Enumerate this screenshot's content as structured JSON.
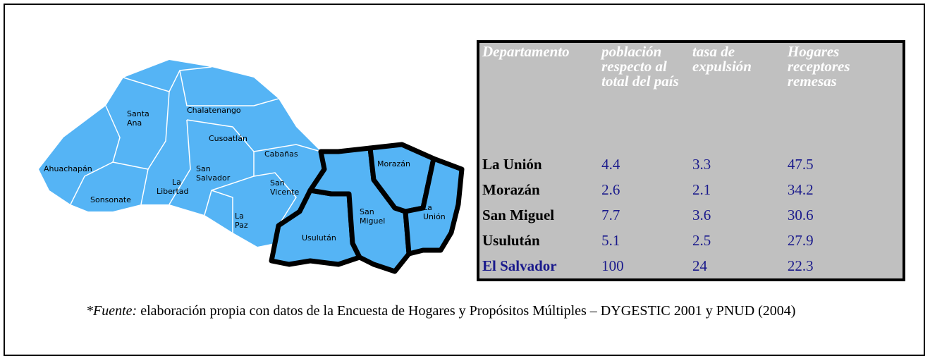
{
  "map": {
    "labels": [
      {
        "lines": [
          "Santa",
          "Ana"
        ]
      },
      {
        "lines": [
          "Chalatenango"
        ]
      },
      {
        "lines": [
          "Cusoatlán"
        ]
      },
      {
        "lines": [
          "Cabañas"
        ]
      },
      {
        "lines": [
          "Ahuachapán"
        ]
      },
      {
        "lines": [
          "San",
          "Salvador"
        ]
      },
      {
        "lines": [
          "La",
          "Libertad"
        ]
      },
      {
        "lines": [
          "Sonsonate"
        ]
      },
      {
        "lines": [
          "San",
          "Vicente"
        ]
      },
      {
        "lines": [
          "La",
          "Paz"
        ]
      },
      {
        "lines": [
          "Morazán"
        ]
      },
      {
        "lines": [
          "San",
          "Miguel"
        ]
      },
      {
        "lines": [
          "La",
          "Unión"
        ]
      },
      {
        "lines": [
          "Usulután"
        ]
      }
    ]
  },
  "table": {
    "header": [
      "Departamento",
      "población respecto al total del país",
      "tasa de expulsión",
      "Hogares receptores remesas"
    ],
    "rows": [
      [
        "La Unión",
        4.4,
        3.3,
        47.5
      ],
      [
        "Morazán",
        2.6,
        2.1,
        34.2
      ],
      [
        "San Miguel",
        7.7,
        3.6,
        30.6
      ],
      [
        "Usulután",
        5.1,
        2.5,
        27.9
      ],
      [
        "El Salvador",
        100,
        24,
        22.3
      ]
    ]
  },
  "footnote": {
    "source_label": "*Fuente:",
    "text": "elaboración propia con datos de la Encuesta de Hogares y Propósitos Múltiples – DYGESTIC 2001 y PNUD (2004)"
  }
}
